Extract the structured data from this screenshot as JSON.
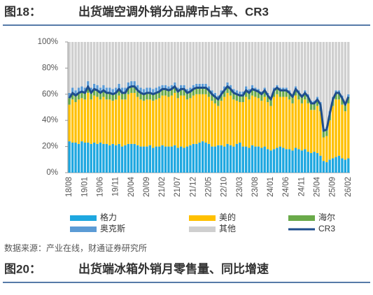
{
  "chart_data": {
    "type": "bar",
    "figure_label": "图18：",
    "title": "出货端空调外销分品牌市占率、CR3",
    "source": "数据来源：产业在线，财通证券研究所",
    "categories": [
      "18/08",
      null,
      null,
      null,
      null,
      "19/01",
      null,
      null,
      null,
      null,
      "19/06",
      null,
      null,
      null,
      null,
      "19/11",
      null,
      null,
      null,
      null,
      "20/04",
      null,
      null,
      null,
      null,
      "20/09",
      null,
      null,
      null,
      null,
      "21/02",
      null,
      null,
      null,
      null,
      "21/07",
      null,
      null,
      null,
      null,
      "21/12",
      null,
      null,
      null,
      null,
      "22/05",
      null,
      null,
      null,
      null,
      "22/10",
      null,
      null,
      null,
      null,
      "23/03",
      null,
      null,
      null,
      null,
      "23/08",
      null,
      null,
      null,
      null,
      "24/01",
      null,
      null,
      null,
      null,
      "24/06",
      null,
      null,
      null,
      null,
      "24/11",
      null,
      null,
      null,
      null,
      "25/04",
      null,
      null,
      null,
      null,
      "25/09",
      null,
      null,
      null,
      null,
      "26/02"
    ],
    "ylim": [
      0,
      100
    ],
    "yticks": [
      {
        "value": 0,
        "label": "0%"
      },
      {
        "value": 20,
        "label": "20%"
      },
      {
        "value": 40,
        "label": "40%"
      },
      {
        "value": 60,
        "label": "60%"
      },
      {
        "value": 80,
        "label": "80%"
      },
      {
        "value": 100,
        "label": "100%"
      }
    ],
    "series": [
      {
        "name": "格力",
        "color": "#1ea7e0",
        "type": "bar",
        "values": [
          24,
          23,
          23,
          22,
          24,
          23,
          23,
          22,
          23,
          22,
          23,
          22,
          22,
          21,
          22,
          21,
          22,
          20,
          21,
          22,
          22,
          22,
          21,
          20,
          20,
          20,
          21,
          19,
          20,
          20,
          21,
          20,
          20,
          20,
          21,
          19,
          20,
          19,
          20,
          21,
          22,
          22,
          23,
          24,
          23,
          22,
          20,
          20,
          21,
          21,
          20,
          22,
          21,
          20,
          22,
          23,
          20,
          20,
          19,
          21,
          20,
          20,
          19,
          20,
          18,
          17,
          18,
          19,
          20,
          19,
          18,
          18,
          17,
          19,
          18,
          17,
          18,
          16,
          15,
          16,
          15,
          13,
          9,
          8,
          10,
          11,
          12,
          13,
          11,
          10,
          11
        ]
      },
      {
        "name": "美的",
        "color": "#ffc000",
        "type": "bar",
        "values": [
          28,
          33,
          31,
          34,
          33,
          33,
          38,
          34,
          36,
          36,
          33,
          36,
          34,
          35,
          33,
          35,
          37,
          36,
          35,
          38,
          39,
          39,
          37,
          36,
          35,
          36,
          35,
          36,
          36,
          37,
          38,
          39,
          38,
          39,
          40,
          38,
          39,
          40,
          36,
          36,
          37,
          38,
          37,
          36,
          37,
          36,
          35,
          33,
          30,
          34,
          38,
          39,
          38,
          36,
          33,
          31,
          34,
          38,
          37,
          38,
          38,
          37,
          36,
          38,
          36,
          34,
          40,
          41,
          38,
          39,
          40,
          38,
          36,
          40,
          38,
          36,
          38,
          37,
          33,
          32,
          36,
          34,
          18,
          20,
          30,
          40,
          44,
          43,
          41,
          37,
          42
        ]
      },
      {
        "name": "海尔",
        "color": "#6aaa4a",
        "type": "bar",
        "values": [
          5,
          5,
          5,
          5,
          5,
          5,
          5,
          5,
          5,
          5,
          5,
          5,
          5,
          5,
          5,
          5,
          5,
          5,
          5,
          5,
          5,
          5,
          5,
          5,
          5,
          5,
          5,
          5,
          5,
          5,
          5,
          5,
          5,
          5,
          5,
          5,
          5,
          5,
          5,
          5,
          5,
          5,
          5,
          5,
          5,
          5,
          5,
          5,
          5,
          5,
          5,
          5,
          5,
          5,
          5,
          5,
          5,
          5,
          5,
          5,
          5,
          5,
          5,
          5,
          5,
          5,
          5,
          5,
          5,
          5,
          5,
          5,
          5,
          5,
          5,
          5,
          5,
          5,
          5,
          5,
          5,
          5,
          5,
          5,
          5,
          5,
          5,
          5,
          5,
          5,
          5
        ]
      },
      {
        "name": "奥克斯",
        "color": "#5b9bd5",
        "type": "bar",
        "values": [
          4,
          4,
          4,
          4,
          4,
          4,
          4,
          4,
          4,
          4,
          4,
          4,
          4,
          4,
          4,
          4,
          4,
          4,
          4,
          4,
          4,
          4,
          4,
          4,
          4,
          4,
          4,
          4,
          4,
          4,
          3,
          3,
          3,
          3,
          3,
          3,
          3,
          3,
          3,
          3,
          3,
          3,
          3,
          3,
          3,
          3,
          3,
          3,
          3,
          3,
          3,
          3,
          3,
          3,
          3,
          3,
          3,
          3,
          3,
          3,
          2,
          2,
          2,
          2,
          2,
          2,
          2,
          2,
          2,
          2,
          2,
          2,
          2,
          2,
          2,
          2,
          2,
          2,
          2,
          2,
          2,
          2,
          2,
          2,
          2,
          2,
          2,
          2,
          2,
          2,
          2
        ]
      },
      {
        "name": "其他",
        "color": "#cfcfcf",
        "type": "bar",
        "values": [
          39,
          35,
          37,
          35,
          34,
          35,
          30,
          35,
          32,
          33,
          35,
          33,
          35,
          35,
          36,
          35,
          32,
          35,
          35,
          31,
          30,
          30,
          33,
          35,
          36,
          35,
          35,
          36,
          35,
          34,
          33,
          33,
          34,
          33,
          31,
          35,
          33,
          33,
          36,
          35,
          33,
          32,
          32,
          32,
          32,
          34,
          37,
          39,
          41,
          37,
          34,
          31,
          33,
          36,
          37,
          38,
          38,
          34,
          36,
          33,
          35,
          36,
          38,
          35,
          39,
          42,
          35,
          33,
          35,
          35,
          35,
          37,
          40,
          34,
          37,
          40,
          37,
          40,
          45,
          45,
          42,
          46,
          66,
          65,
          53,
          42,
          37,
          37,
          41,
          46,
          40
        ]
      },
      {
        "name": "CR3",
        "color": "#1f4e8c",
        "type": "line",
        "values": [
          57,
          61,
          59,
          61,
          62,
          61,
          66,
          61,
          64,
          63,
          61,
          63,
          61,
          61,
          60,
          61,
          64,
          61,
          61,
          65,
          66,
          66,
          63,
          61,
          60,
          61,
          61,
          60,
          61,
          62,
          64,
          64,
          63,
          64,
          66,
          62,
          64,
          64,
          61,
          62,
          64,
          65,
          65,
          65,
          65,
          63,
          60,
          58,
          56,
          60,
          63,
          66,
          64,
          61,
          60,
          59,
          59,
          63,
          61,
          64,
          63,
          62,
          60,
          63,
          59,
          56,
          63,
          65,
          63,
          63,
          63,
          61,
          58,
          64,
          61,
          58,
          61,
          58,
          53,
          53,
          56,
          52,
          32,
          33,
          45,
          56,
          61,
          61,
          57,
          52,
          58
        ]
      }
    ]
  },
  "next_figure": {
    "label": "图20：",
    "title": "出货端冰箱外销月零售量、同比增速"
  }
}
